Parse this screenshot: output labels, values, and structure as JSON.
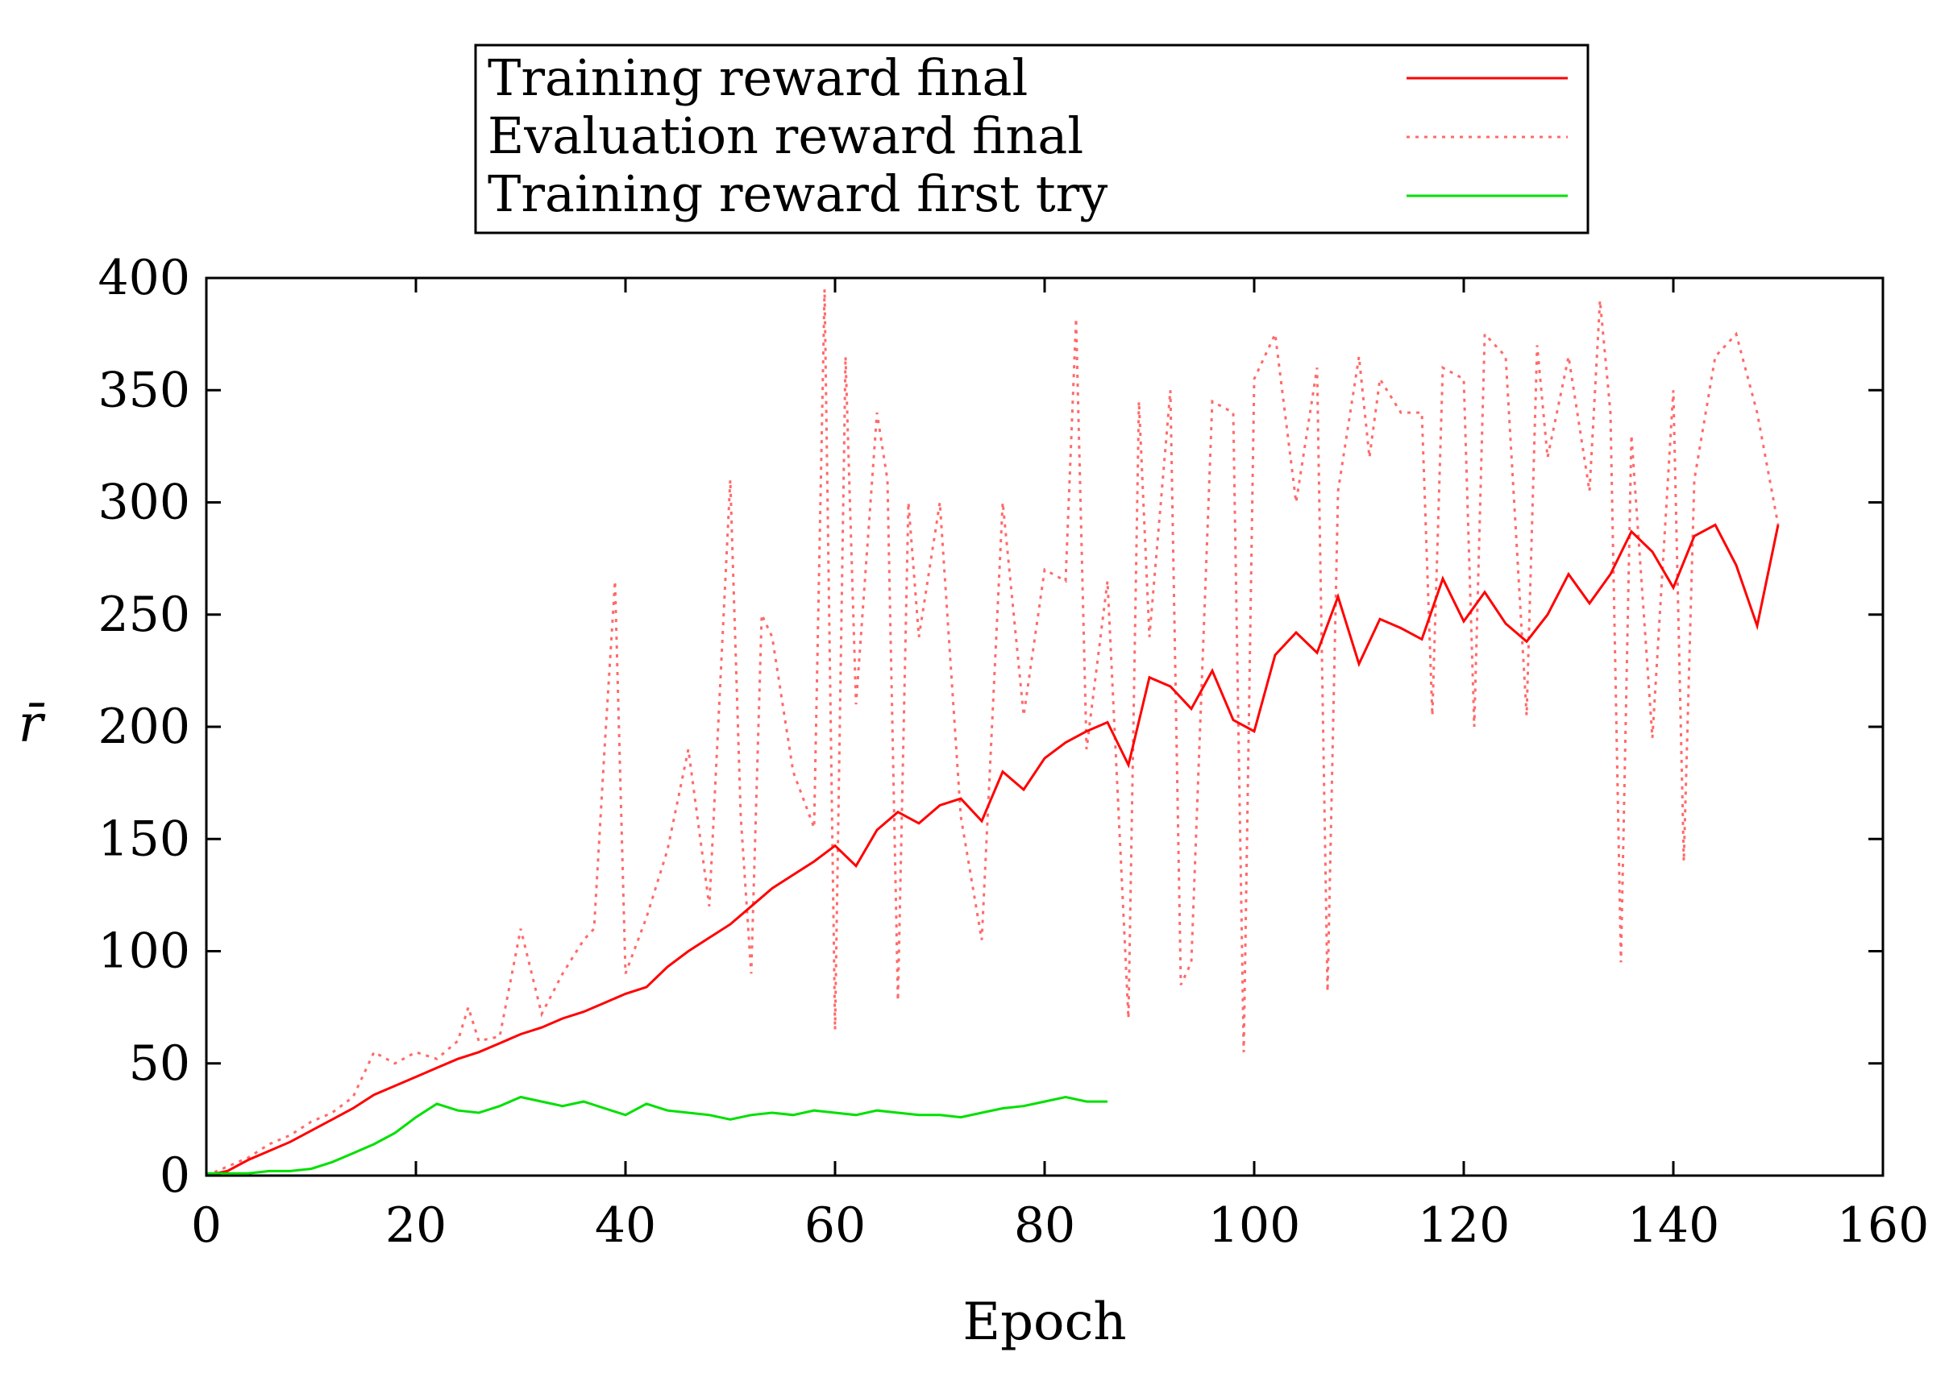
{
  "chart_data": {
    "type": "line",
    "xlabel": "Epoch",
    "ylabel": "r̄",
    "xlim": [
      0,
      160
    ],
    "ylim": [
      0,
      400
    ],
    "x_ticks": [
      "0",
      "20",
      "40",
      "60",
      "80",
      "100",
      "120",
      "140",
      "160"
    ],
    "y_ticks": [
      "0",
      "50",
      "100",
      "150",
      "200",
      "250",
      "300",
      "350",
      "400"
    ],
    "grid": false,
    "legend_position": "top-center, outside plot",
    "series": [
      {
        "name": "Training reward final",
        "color": "#ff0000",
        "style": "solid",
        "x": [
          0,
          2,
          4,
          6,
          8,
          10,
          12,
          14,
          16,
          18,
          20,
          22,
          24,
          26,
          28,
          30,
          32,
          34,
          36,
          38,
          40,
          42,
          44,
          46,
          48,
          50,
          52,
          54,
          56,
          58,
          60,
          62,
          64,
          66,
          68,
          70,
          72,
          74,
          76,
          78,
          80,
          82,
          84,
          86,
          88,
          90,
          92,
          94,
          96,
          98,
          100,
          102,
          104,
          106,
          108,
          110,
          112,
          114,
          116,
          118,
          120,
          122,
          124,
          126,
          128,
          130,
          132,
          134,
          136,
          138,
          140,
          142,
          144,
          146,
          148,
          150
        ],
        "values": [
          0,
          2,
          7,
          11,
          15,
          20,
          25,
          30,
          36,
          40,
          44,
          48,
          52,
          55,
          59,
          63,
          66,
          70,
          73,
          77,
          81,
          84,
          93,
          100,
          106,
          112,
          120,
          128,
          134,
          140,
          147,
          138,
          154,
          162,
          157,
          165,
          168,
          158,
          180,
          172,
          186,
          193,
          198,
          202,
          183,
          222,
          218,
          208,
          225,
          203,
          198,
          232,
          242,
          233,
          258,
          228,
          248,
          244,
          239,
          266,
          247,
          260,
          246,
          238,
          250,
          268,
          255,
          268,
          287,
          278,
          262,
          285,
          290,
          272,
          245,
          290
        ]
      },
      {
        "name": "Evaluation reward final",
        "color": "#ff6a6a",
        "style": "dotted",
        "x": [
          0,
          2,
          4,
          6,
          8,
          10,
          12,
          14,
          16,
          18,
          20,
          22,
          24,
          25,
          26,
          28,
          30,
          32,
          34,
          36,
          37,
          38,
          39,
          40,
          42,
          44,
          46,
          48,
          50,
          51,
          52,
          53,
          54,
          56,
          58,
          59,
          60,
          61,
          62,
          64,
          65,
          66,
          67,
          68,
          70,
          72,
          74,
          76,
          78,
          80,
          82,
          83,
          84,
          86,
          88,
          89,
          90,
          92,
          93,
          94,
          96,
          98,
          99,
          100,
          102,
          104,
          106,
          107,
          108,
          110,
          111,
          112,
          114,
          116,
          117,
          118,
          120,
          121,
          122,
          124,
          126,
          127,
          128,
          130,
          132,
          133,
          134,
          135,
          136,
          138,
          140,
          141,
          142,
          144,
          146,
          148,
          150
        ],
        "values": [
          0,
          4,
          8,
          14,
          18,
          24,
          28,
          35,
          55,
          50,
          55,
          52,
          60,
          75,
          60,
          62,
          110,
          72,
          90,
          105,
          110,
          190,
          265,
          90,
          115,
          145,
          190,
          120,
          310,
          160,
          90,
          250,
          240,
          180,
          155,
          395,
          65,
          365,
          210,
          340,
          310,
          78,
          300,
          240,
          300,
          160,
          105,
          300,
          205,
          270,
          265,
          382,
          190,
          265,
          70,
          345,
          240,
          350,
          85,
          95,
          345,
          340,
          55,
          355,
          375,
          300,
          360,
          82,
          305,
          365,
          320,
          355,
          340,
          340,
          205,
          360,
          355,
          200,
          375,
          365,
          205,
          370,
          320,
          365,
          305,
          390,
          340,
          95,
          330,
          195,
          350,
          140,
          310,
          365,
          375,
          340,
          290
        ]
      },
      {
        "name": "Training reward first try",
        "color": "#00e000",
        "style": "solid",
        "x": [
          0,
          2,
          4,
          6,
          8,
          10,
          12,
          14,
          16,
          18,
          20,
          22,
          24,
          26,
          28,
          30,
          32,
          34,
          36,
          38,
          40,
          42,
          44,
          46,
          48,
          50,
          52,
          54,
          56,
          58,
          60,
          62,
          64,
          66,
          68,
          70,
          72,
          74,
          76,
          78,
          80,
          82,
          84,
          86
        ],
        "values": [
          1,
          1,
          1,
          2,
          2,
          3,
          6,
          10,
          14,
          19,
          26,
          32,
          29,
          28,
          31,
          35,
          33,
          31,
          33,
          30,
          27,
          32,
          29,
          28,
          27,
          25,
          27,
          28,
          27,
          29,
          28,
          27,
          29,
          28,
          27,
          27,
          26,
          28,
          30,
          31,
          33,
          35,
          33,
          33
        ]
      }
    ]
  }
}
